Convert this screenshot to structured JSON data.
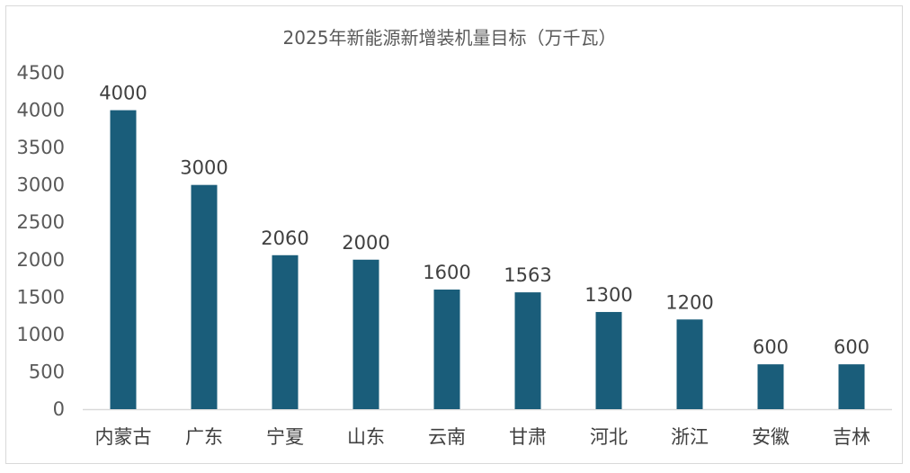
{
  "chart_data": {
    "type": "bar",
    "title": "2025年新能源新增装机量目标（万千瓦）",
    "categories": [
      "内蒙古",
      "广东",
      "宁夏",
      "山东",
      "云南",
      "甘肃",
      "河北",
      "浙江",
      "安徽",
      "吉林"
    ],
    "values": [
      4000,
      3000,
      2060,
      2000,
      1600,
      1563,
      1300,
      1200,
      600,
      600
    ],
    "data_labels": [
      "4000",
      "3000",
      "2060",
      "2000",
      "1600",
      "1563",
      "1300",
      "1200",
      "600",
      "600"
    ],
    "ylim": [
      0,
      4500
    ],
    "yticks": [
      0,
      500,
      1000,
      1500,
      2000,
      2500,
      3000,
      3500,
      4000,
      4500
    ],
    "xlabel": "",
    "ylabel": "",
    "grid": false,
    "legend": "none",
    "bar_color": "#1a5d7a",
    "axis_color": "#d9d9d9"
  }
}
